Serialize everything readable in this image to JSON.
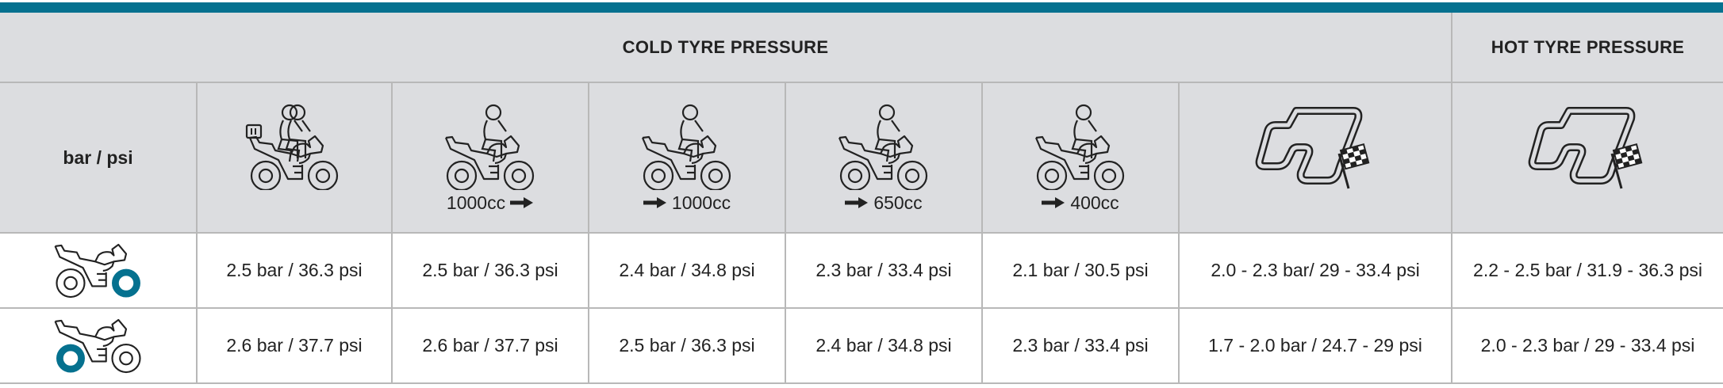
{
  "header": {
    "cold_label": "COLD TYRE PRESSURE",
    "hot_label": "HOT TYRE PRESSURE",
    "unit_label": "bar / psi"
  },
  "columns": [
    {
      "icon": "motorcycle-touring-two-riders-luggage-icon",
      "caption": ""
    },
    {
      "icon": "motorcycle-rider-icon",
      "caption": "1000cc",
      "arrow": "after"
    },
    {
      "icon": "motorcycle-rider-icon",
      "caption": "1000cc",
      "arrow": "before"
    },
    {
      "icon": "motorcycle-rider-icon",
      "caption": "650cc",
      "arrow": "before"
    },
    {
      "icon": "motorcycle-rider-icon",
      "caption": "400cc",
      "arrow": "before"
    },
    {
      "icon": "race-track-flag-icon",
      "caption": ""
    },
    {
      "icon": "race-track-flag-icon",
      "caption": ""
    }
  ],
  "rows": [
    {
      "icon": "motorcycle-front-tyre-icon",
      "tyre": "front",
      "values": [
        "2.5 bar / 36.3 psi",
        "2.5 bar / 36.3 psi",
        "2.4 bar / 34.8 psi",
        "2.3 bar / 33.4 psi",
        "2.1 bar / 30.5 psi",
        "2.0 - 2.3 bar/ 29 - 33.4 psi",
        "2.2 - 2.5 bar / 31.9 - 36.3 psi"
      ]
    },
    {
      "icon": "motorcycle-rear-tyre-icon",
      "tyre": "rear",
      "values": [
        "2.6 bar / 37.7 psi",
        "2.6 bar / 37.7 psi",
        "2.5 bar / 36.3 psi",
        "2.4 bar / 34.8 psi",
        "2.3 bar / 33.4 psi",
        "1.7 - 2.0 bar / 24.7 - 29 psi",
        "2.0 - 2.3 bar / 29 - 33.4 psi"
      ]
    }
  ],
  "colors": {
    "accent": "#05718f",
    "header_bg": "#dcdde0",
    "grid": "#b8b8b8"
  }
}
